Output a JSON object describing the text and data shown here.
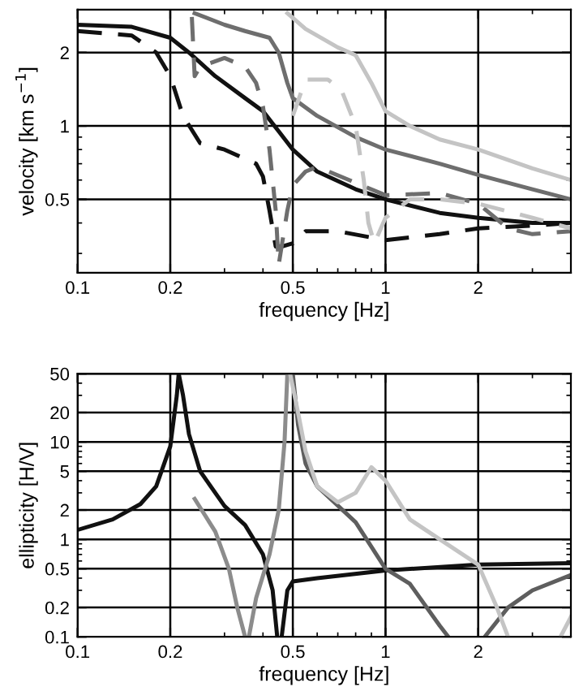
{
  "chart_data": [
    {
      "type": "line",
      "log": "xy",
      "grid": true,
      "xlabel": "frequency [Hz]",
      "ylabel": "velocity [km s$^{−1}$]",
      "xlim": [
        0.1,
        4
      ],
      "ylim": [
        0.25,
        3
      ],
      "xticks": [
        0.1,
        0.2,
        0.5,
        1,
        2
      ],
      "yticks": [
        0.5,
        1,
        2
      ],
      "series": [
        {
          "color": "#111111",
          "line_style": "solid",
          "x": [
            0.1,
            0.15,
            0.2,
            0.23,
            0.28,
            0.35,
            0.4,
            0.45,
            0.5,
            0.6,
            0.8,
            1,
            1.5,
            2,
            3,
            4
          ],
          "values": [
            2.6,
            2.55,
            2.3,
            2.0,
            1.6,
            1.3,
            1.15,
            0.95,
            0.8,
            0.65,
            0.55,
            0.5,
            0.44,
            0.42,
            0.4,
            0.4
          ]
        },
        {
          "color": "#111111",
          "line_style": "dashed",
          "x": [
            0.1,
            0.15,
            0.18,
            0.2,
            0.22,
            0.25,
            0.3,
            0.38,
            0.4,
            0.42,
            0.44,
            0.46,
            0.5,
            0.55,
            0.7,
            1,
            1.5,
            2,
            3,
            4
          ],
          "values": [
            2.45,
            2.35,
            2.0,
            1.6,
            1.1,
            0.85,
            0.8,
            0.7,
            0.62,
            0.45,
            0.32,
            0.32,
            0.33,
            0.37,
            0.37,
            0.34,
            0.36,
            0.38,
            0.39,
            0.4
          ]
        },
        {
          "color": "#6e6e6e",
          "line_style": "solid",
          "x": [
            0.24,
            0.3,
            0.35,
            0.42,
            0.45,
            0.48,
            0.5,
            0.6,
            0.8,
            1,
            1.5,
            2,
            3,
            4
          ],
          "values": [
            2.9,
            2.6,
            2.45,
            2.3,
            2.0,
            1.5,
            1.3,
            1.1,
            0.9,
            0.8,
            0.7,
            0.63,
            0.55,
            0.5
          ]
        },
        {
          "color": "#6e6e6e",
          "line_style": "dashed",
          "x": [
            0.235,
            0.24,
            0.25,
            0.3,
            0.35,
            0.38,
            0.4,
            0.42,
            0.44,
            0.45,
            0.48,
            0.5,
            0.55,
            0.6,
            1,
            1.5,
            2,
            2.5,
            3,
            4
          ],
          "values": [
            2.8,
            1.6,
            1.75,
            1.9,
            1.75,
            1.5,
            1.2,
            0.8,
            0.45,
            0.27,
            0.45,
            0.57,
            0.65,
            0.68,
            0.52,
            0.53,
            0.48,
            0.38,
            0.36,
            0.37
          ]
        },
        {
          "color": "#c4c4c4",
          "line_style": "solid",
          "x": [
            0.48,
            0.55,
            0.7,
            0.8,
            0.9,
            1,
            1.2,
            1.5,
            2,
            3,
            4
          ],
          "values": [
            2.9,
            2.5,
            2.1,
            1.95,
            1.5,
            1.15,
            1.0,
            0.88,
            0.8,
            0.67,
            0.6
          ]
        },
        {
          "color": "#c4c4c4",
          "line_style": "dashed",
          "x": [
            0.5,
            0.55,
            0.65,
            0.72,
            0.8,
            0.85,
            0.88,
            0.92,
            1,
            1.2,
            1.5,
            2,
            3,
            4
          ],
          "values": [
            1.1,
            1.55,
            1.55,
            1.4,
            1.0,
            0.6,
            0.4,
            0.33,
            0.42,
            0.5,
            0.5,
            0.48,
            0.42,
            0.38
          ]
        }
      ]
    },
    {
      "type": "line",
      "log": "xy",
      "grid": true,
      "xlabel": "frequency [Hz]",
      "ylabel": "ellipticity [H/V]",
      "xlim": [
        0.1,
        4
      ],
      "ylim": [
        0.1,
        50
      ],
      "xticks": [
        0.1,
        0.2,
        0.5,
        1,
        2
      ],
      "yticks": [
        0.1,
        0.2,
        0.5,
        1,
        2,
        5,
        10,
        20,
        50
      ],
      "series": [
        {
          "color": "#111111",
          "line_style": "solid",
          "x": [
            0.1,
            0.13,
            0.16,
            0.18,
            0.2,
            0.21,
            0.213,
            0.22,
            0.23,
            0.25,
            0.3,
            0.35,
            0.4,
            0.43,
            0.445,
            0.45,
            0.46,
            0.48,
            0.5,
            0.6,
            1,
            2,
            4
          ],
          "values": [
            1.25,
            1.6,
            2.3,
            3.5,
            9,
            30,
            50,
            30,
            12,
            5,
            2.2,
            1.4,
            0.7,
            0.3,
            0.1,
            null,
            0.1,
            0.3,
            0.37,
            0.4,
            0.48,
            0.55,
            0.57
          ]
        },
        {
          "color": "#8c8c8c",
          "line_style": "solid",
          "x": [
            0.24,
            0.28,
            0.31,
            0.33,
            0.35,
            0.355,
            0.36,
            0.38,
            0.42,
            0.45,
            0.47,
            0.48
          ],
          "values": [
            2.6,
            1.2,
            0.5,
            0.2,
            0.1,
            null,
            0.1,
            0.25,
            0.7,
            2,
            10,
            50
          ]
        },
        {
          "color": "#5e5e5e",
          "line_style": "solid",
          "x": [
            0.5,
            0.52,
            0.55,
            0.6,
            0.8,
            1,
            1.2,
            1.5,
            1.6,
            1.8,
            2.1,
            2.5,
            3,
            4
          ],
          "values": [
            50,
            15,
            6,
            3.5,
            1.5,
            0.5,
            0.35,
            0.13,
            0.1,
            null,
            0.1,
            0.2,
            0.3,
            0.43
          ]
        },
        {
          "color": "#c4c4c4",
          "line_style": "solid",
          "x": [
            0.49,
            0.52,
            0.55,
            0.6,
            0.7,
            0.8,
            0.9,
            1,
            1.2,
            1.5,
            2,
            2.3,
            2.5,
            3,
            3.7,
            4
          ],
          "values": [
            50,
            20,
            8,
            3.5,
            2.4,
            3,
            5.5,
            4,
            1.6,
            1,
            0.55,
            0.2,
            0.1,
            null,
            0.1,
            0.16
          ]
        }
      ]
    }
  ]
}
